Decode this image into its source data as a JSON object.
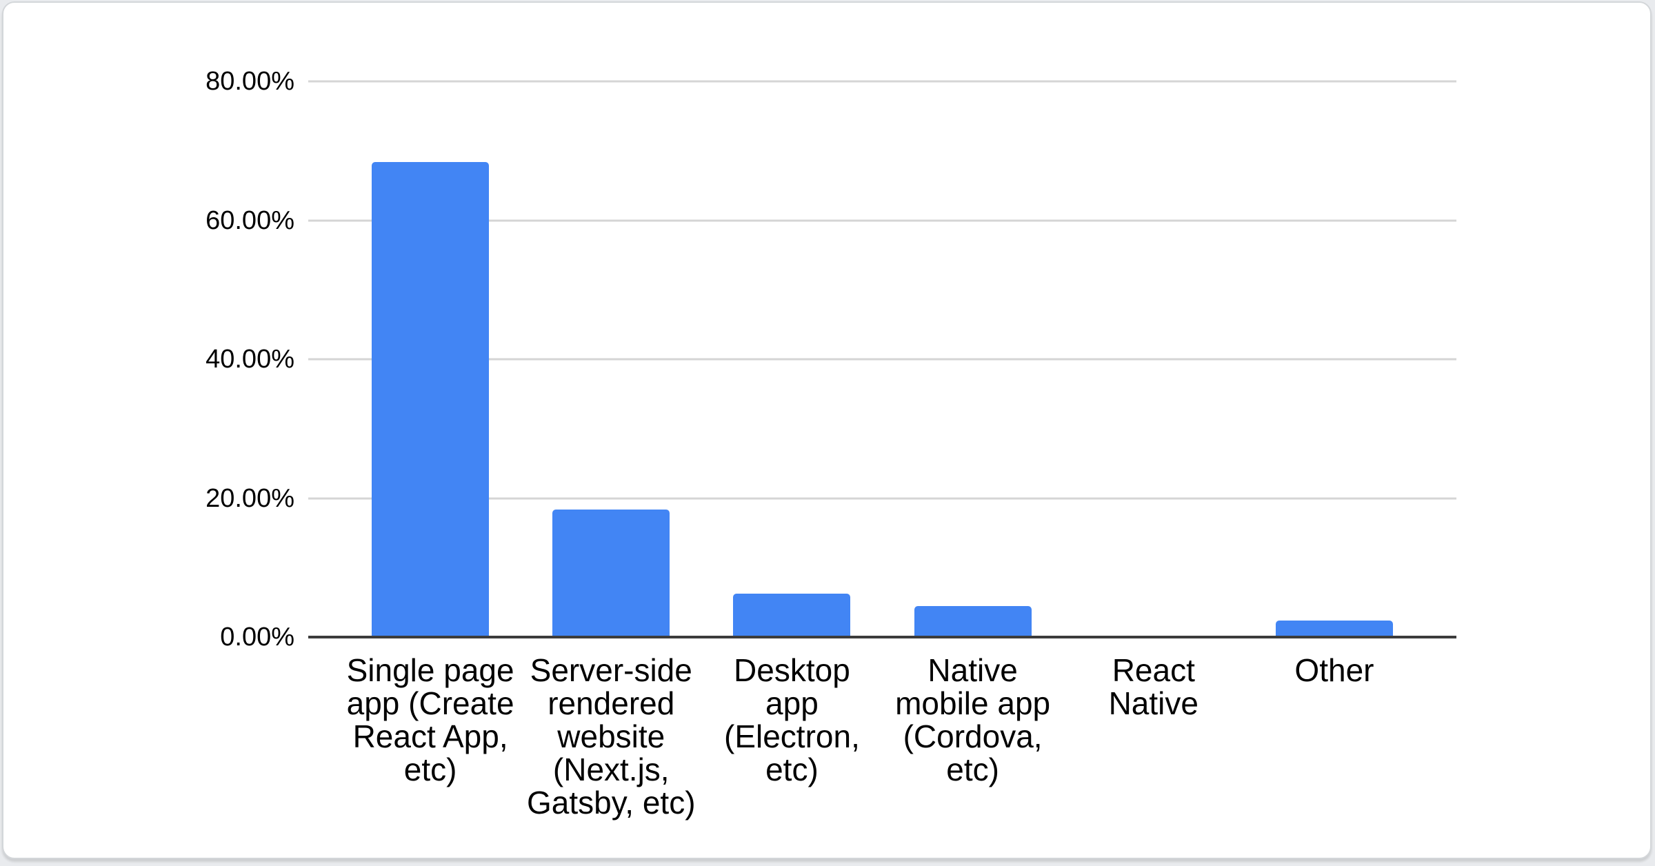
{
  "page": {
    "background_color": "#e9ebee",
    "card": {
      "background_color": "#ffffff",
      "border_color": "#d3d6d9"
    }
  },
  "chart_data": {
    "type": "bar",
    "title": "",
    "xlabel": "",
    "ylabel": "",
    "categories": [
      "Single page\napp (Create\nReact App,\netc)",
      "Server-side\nrendered\nwebsite\n(Next.js,\nGatsby, etc)",
      "Desktop\napp\n(Electron,\netc)",
      "Native\nmobile app\n(Cordova,\netc)",
      "React\nNative",
      "Other"
    ],
    "categories_plain": [
      "Single page app (Create React App, etc)",
      "Server-side rendered website (Next.js, Gatsby, etc)",
      "Desktop app (Electron, etc)",
      "Native mobile app (Cordova, etc)",
      "React Native",
      "Other"
    ],
    "values": [
      68.4,
      18.4,
      6.3,
      4.5,
      0,
      2.4
    ],
    "value_unit": "%",
    "ylim": [
      0,
      80
    ],
    "y_ticks": [
      {
        "value": 0,
        "label": "0.00%"
      },
      {
        "value": 20,
        "label": "20.00%"
      },
      {
        "value": 40,
        "label": "40.00%"
      },
      {
        "value": 60,
        "label": "60.00%"
      },
      {
        "value": 80,
        "label": "80.00%"
      }
    ],
    "grid": true,
    "legend_position": "none",
    "bar_color": "#4285f4",
    "gridline_color": "#d5d5d5",
    "axis_line_color": "#3c3c3c",
    "label_color": "#000000"
  }
}
